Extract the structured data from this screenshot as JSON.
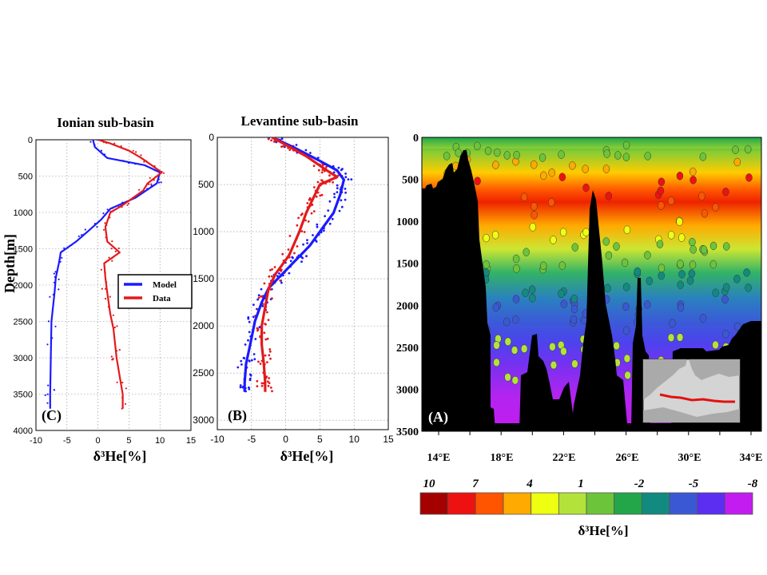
{
  "chart_data": [
    {
      "type": "line",
      "panel_label": "(C)",
      "title": "Ionian sub-basin",
      "xlabel": "δ³He[%]",
      "ylabel": "Depth[m]",
      "xlim": [
        -10,
        15
      ],
      "ylim": [
        4000,
        0
      ],
      "xticks": [
        -10,
        -5,
        0,
        5,
        10,
        15
      ],
      "yticks": [
        0,
        500,
        1000,
        1500,
        2000,
        2500,
        3000,
        3500,
        4000
      ],
      "grid": true,
      "legend": {
        "position": "middle-right",
        "entries": [
          "Model",
          "Data"
        ]
      },
      "series": [
        {
          "name": "Model",
          "color": "#1a1aff",
          "points": [
            [
              -0.8,
              0
            ],
            [
              -0.5,
              100
            ],
            [
              1.5,
              250
            ],
            [
              7.5,
              350
            ],
            [
              10,
              450
            ],
            [
              9.5,
              600
            ],
            [
              6,
              800
            ],
            [
              2,
              950
            ],
            [
              0.5,
              1100
            ],
            [
              -1.5,
              1250
            ],
            [
              -3.5,
              1400
            ],
            [
              -6,
              1550
            ],
            [
              -6.3,
              1700
            ],
            [
              -6.8,
              1900
            ],
            [
              -7,
              2100
            ],
            [
              -7.5,
              2500
            ],
            [
              -7.6,
              3000
            ],
            [
              -7.7,
              3500
            ],
            [
              -7.7,
              3700
            ]
          ]
        },
        {
          "name": "Data",
          "color": "#e31a1c",
          "points": [
            [
              0,
              0
            ],
            [
              2,
              50
            ],
            [
              5,
              150
            ],
            [
              7,
              250
            ],
            [
              10.3,
              450
            ],
            [
              8,
              600
            ],
            [
              7.3,
              700
            ],
            [
              4,
              900
            ],
            [
              2,
              1000
            ],
            [
              1.2,
              1200
            ],
            [
              1.5,
              1400
            ],
            [
              3.5,
              1550
            ],
            [
              1,
              1700
            ],
            [
              1.2,
              1900
            ],
            [
              1.5,
              2100
            ],
            [
              2,
              2400
            ],
            [
              2.5,
              2600
            ],
            [
              3,
              3000
            ],
            [
              3.6,
              3300
            ],
            [
              4,
              3500
            ],
            [
              4,
              3700
            ]
          ]
        }
      ]
    },
    {
      "type": "line",
      "panel_label": "(B)",
      "title": "Levantine sub-basin",
      "xlabel": "δ³He[%]",
      "xlim": [
        -10,
        15
      ],
      "ylim": [
        3100,
        0
      ],
      "xticks": [
        -10,
        -5,
        0,
        5,
        10,
        15
      ],
      "yticks": [
        0,
        500,
        1000,
        1500,
        2000,
        2500,
        3000
      ],
      "grid": true,
      "series": [
        {
          "color": "#1a1aff",
          "points": [
            [
              -2,
              0
            ],
            [
              1,
              100
            ],
            [
              5,
              250
            ],
            [
              7.5,
              350
            ],
            [
              8.5,
              450
            ],
            [
              8,
              600
            ],
            [
              7,
              800
            ],
            [
              5,
              1000
            ],
            [
              3.5,
              1150
            ],
            [
              1.5,
              1300
            ],
            [
              -0.5,
              1450
            ],
            [
              -2.5,
              1600
            ],
            [
              -3.5,
              1750
            ],
            [
              -4.5,
              1950
            ],
            [
              -5.2,
              2200
            ],
            [
              -5.8,
              2400
            ],
            [
              -6,
              2600
            ],
            [
              -6,
              2700
            ]
          ]
        },
        {
          "color": "#e31a1c",
          "points": [
            [
              -2,
              0
            ],
            [
              0,
              80
            ],
            [
              3,
              200
            ],
            [
              6,
              350
            ],
            [
              7.5,
              420
            ],
            [
              5,
              500
            ],
            [
              4,
              650
            ],
            [
              3,
              800
            ],
            [
              2,
              1000
            ],
            [
              0.5,
              1250
            ],
            [
              -1.5,
              1450
            ],
            [
              -2.5,
              1600
            ],
            [
              -3,
              1800
            ],
            [
              -3.5,
              2000
            ],
            [
              -3.5,
              2200
            ],
            [
              -3.2,
              2400
            ],
            [
              -3,
              2600
            ],
            [
              -3,
              2700
            ]
          ]
        }
      ]
    },
    {
      "type": "heatmap",
      "panel_label": "(A)",
      "xticks": [
        "14°E",
        "18°E",
        "22°E",
        "26°E",
        "30°E",
        "34°E"
      ],
      "yticks": [
        "0",
        "500",
        "1000",
        "1500",
        "2000",
        "2500",
        "3000",
        "3500"
      ],
      "colorbar": {
        "label": "δ³He[%]",
        "tick_labels": [
          "10",
          "7",
          "4",
          "1",
          "-2",
          "-5",
          "-8"
        ],
        "colors": [
          "#a50000",
          "#ee1111",
          "#ff5500",
          "#ffaa00",
          "#eeff11",
          "#b3e33a",
          "#6cc43a",
          "#23a64a",
          "#138a80",
          "#3b58d4",
          "#5b2ef2",
          "#c21cf0"
        ]
      }
    }
  ]
}
